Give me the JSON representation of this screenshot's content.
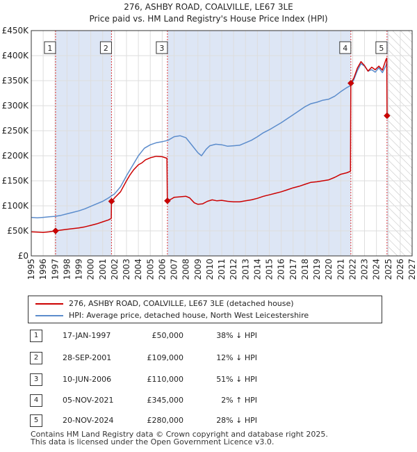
{
  "chart_data": {
    "type": "line",
    "title": "276, ASHBY ROAD, COALVILLE, LE67 3LE",
    "subtitle": "Price paid vs. HM Land Registry's House Price Index (HPI)",
    "xlim": [
      1995,
      2027
    ],
    "ylim": [
      0,
      450000
    ],
    "x_ticks": [
      1995,
      1996,
      1997,
      1998,
      1999,
      2000,
      2001,
      2002,
      2003,
      2004,
      2005,
      2006,
      2007,
      2008,
      2009,
      2010,
      2011,
      2012,
      2013,
      2014,
      2015,
      2016,
      2017,
      2018,
      2019,
      2020,
      2021,
      2022,
      2023,
      2024,
      2025,
      2026,
      2027
    ],
    "y_ticks": [
      0,
      50000,
      100000,
      150000,
      200000,
      250000,
      300000,
      350000,
      400000,
      450000
    ],
    "y_tick_labels": [
      "£0",
      "£50K",
      "£100K",
      "£150K",
      "£200K",
      "£250K",
      "£300K",
      "£350K",
      "£400K",
      "£450K"
    ],
    "forecast_start": 2025.0,
    "colors": {
      "property": "#cc0000",
      "hpi": "#5b8ccc",
      "shade": "#dde6f5",
      "grid": "#dddddd",
      "marker": "#cc0000",
      "vline": "#dd3333"
    },
    "series": [
      {
        "name": "276, ASHBY ROAD, COALVILLE, LE67 3LE (detached house)",
        "color": "#cc0000",
        "points": [
          [
            1995.0,
            48000
          ],
          [
            1995.5,
            47500
          ],
          [
            1996.0,
            47000
          ],
          [
            1996.5,
            48000
          ],
          [
            1997.04,
            50000
          ],
          [
            1997.5,
            51500
          ],
          [
            1998.0,
            53000
          ],
          [
            1998.5,
            54500
          ],
          [
            1999.0,
            56000
          ],
          [
            1999.5,
            58000
          ],
          [
            2000.0,
            61000
          ],
          [
            2000.5,
            64000
          ],
          [
            2001.0,
            68000
          ],
          [
            2001.5,
            72000
          ],
          [
            2001.72,
            75000
          ],
          [
            2001.74,
            109000
          ],
          [
            2002.0,
            116000
          ],
          [
            2002.5,
            128000
          ],
          [
            2003.0,
            150000
          ],
          [
            2003.3,
            162000
          ],
          [
            2003.6,
            172000
          ],
          [
            2004.0,
            182000
          ],
          [
            2004.3,
            186000
          ],
          [
            2004.6,
            192000
          ],
          [
            2005.0,
            196000
          ],
          [
            2005.5,
            199000
          ],
          [
            2006.0,
            198000
          ],
          [
            2006.4,
            195000
          ],
          [
            2006.43,
            120000
          ],
          [
            2006.44,
            110000
          ],
          [
            2006.8,
            114000
          ],
          [
            2007.0,
            117000
          ],
          [
            2007.5,
            118000
          ],
          [
            2008.0,
            119000
          ],
          [
            2008.3,
            116000
          ],
          [
            2008.7,
            106000
          ],
          [
            2009.0,
            103000
          ],
          [
            2009.4,
            104000
          ],
          [
            2009.8,
            109000
          ],
          [
            2010.2,
            112000
          ],
          [
            2010.6,
            110000
          ],
          [
            2011.0,
            111000
          ],
          [
            2011.5,
            109000
          ],
          [
            2012.0,
            108000
          ],
          [
            2012.5,
            108000
          ],
          [
            2013.0,
            110000
          ],
          [
            2013.5,
            112000
          ],
          [
            2014.0,
            115000
          ],
          [
            2014.5,
            119000
          ],
          [
            2015.0,
            122000
          ],
          [
            2015.5,
            125000
          ],
          [
            2016.0,
            128000
          ],
          [
            2016.5,
            132000
          ],
          [
            2017.0,
            136000
          ],
          [
            2017.5,
            139000
          ],
          [
            2018.0,
            143000
          ],
          [
            2018.5,
            147000
          ],
          [
            2019.0,
            148000
          ],
          [
            2019.5,
            150000
          ],
          [
            2020.0,
            152000
          ],
          [
            2020.5,
            157000
          ],
          [
            2021.0,
            163000
          ],
          [
            2021.5,
            166000
          ],
          [
            2021.82,
            169000
          ],
          [
            2021.85,
            345000
          ],
          [
            2022.1,
            355000
          ],
          [
            2022.4,
            375000
          ],
          [
            2022.7,
            388000
          ],
          [
            2023.0,
            380000
          ],
          [
            2023.3,
            369000
          ],
          [
            2023.6,
            377000
          ],
          [
            2023.9,
            372000
          ],
          [
            2024.2,
            379000
          ],
          [
            2024.5,
            371000
          ],
          [
            2024.8,
            392000
          ],
          [
            2024.87,
            395000
          ],
          [
            2024.89,
            280000
          ]
        ]
      },
      {
        "name": "HPI: Average price, detached house, North West Leicestershire",
        "color": "#5b8ccc",
        "points": [
          [
            1995.0,
            77000
          ],
          [
            1995.5,
            76000
          ],
          [
            1996.0,
            77000
          ],
          [
            1996.5,
            78000
          ],
          [
            1997.0,
            79000
          ],
          [
            1997.5,
            81000
          ],
          [
            1998.0,
            84000
          ],
          [
            1998.5,
            87000
          ],
          [
            1999.0,
            90000
          ],
          [
            1999.5,
            94000
          ],
          [
            2000.0,
            99000
          ],
          [
            2000.5,
            104000
          ],
          [
            2001.0,
            109000
          ],
          [
            2001.5,
            116000
          ],
          [
            2002.0,
            124000
          ],
          [
            2002.5,
            138000
          ],
          [
            2003.0,
            160000
          ],
          [
            2003.5,
            180000
          ],
          [
            2004.0,
            200000
          ],
          [
            2004.5,
            215000
          ],
          [
            2005.0,
            222000
          ],
          [
            2005.5,
            226000
          ],
          [
            2006.0,
            228000
          ],
          [
            2006.5,
            231000
          ],
          [
            2007.0,
            238000
          ],
          [
            2007.5,
            240000
          ],
          [
            2008.0,
            236000
          ],
          [
            2008.5,
            221000
          ],
          [
            2009.0,
            206000
          ],
          [
            2009.3,
            200000
          ],
          [
            2009.7,
            213000
          ],
          [
            2010.0,
            220000
          ],
          [
            2010.5,
            223000
          ],
          [
            2011.0,
            222000
          ],
          [
            2011.5,
            219000
          ],
          [
            2012.0,
            220000
          ],
          [
            2012.5,
            221000
          ],
          [
            2013.0,
            226000
          ],
          [
            2013.5,
            231000
          ],
          [
            2014.0,
            238000
          ],
          [
            2014.5,
            246000
          ],
          [
            2015.0,
            252000
          ],
          [
            2015.5,
            259000
          ],
          [
            2016.0,
            266000
          ],
          [
            2016.5,
            274000
          ],
          [
            2017.0,
            282000
          ],
          [
            2017.5,
            290000
          ],
          [
            2018.0,
            298000
          ],
          [
            2018.5,
            304000
          ],
          [
            2019.0,
            307000
          ],
          [
            2019.5,
            311000
          ],
          [
            2020.0,
            313000
          ],
          [
            2020.5,
            319000
          ],
          [
            2021.0,
            328000
          ],
          [
            2021.5,
            336000
          ],
          [
            2021.82,
            340000
          ],
          [
            2022.1,
            352000
          ],
          [
            2022.4,
            370000
          ],
          [
            2022.7,
            384000
          ],
          [
            2023.0,
            379000
          ],
          [
            2023.3,
            369000
          ],
          [
            2023.6,
            372000
          ],
          [
            2023.9,
            367000
          ],
          [
            2024.2,
            376000
          ],
          [
            2024.5,
            366000
          ],
          [
            2024.8,
            380000
          ],
          [
            2024.89,
            387000
          ]
        ]
      }
    ],
    "sales": [
      {
        "id": "1",
        "x": 1997.04,
        "y": 50000
      },
      {
        "id": "2",
        "x": 2001.74,
        "y": 109000
      },
      {
        "id": "3",
        "x": 2006.44,
        "y": 110000
      },
      {
        "id": "4",
        "x": 2021.85,
        "y": 345000
      },
      {
        "id": "5",
        "x": 2024.89,
        "y": 280000
      }
    ]
  },
  "legend": {
    "property_label": "276, ASHBY ROAD, COALVILLE, LE67 3LE (detached house)",
    "hpi_label": "HPI: Average price, detached house, North West Leicestershire"
  },
  "sales_table": [
    {
      "num": "1",
      "date": "17-JAN-1997",
      "price": "£50,000",
      "hpi": "38% ↓ HPI"
    },
    {
      "num": "2",
      "date": "28-SEP-2001",
      "price": "£109,000",
      "hpi": "12% ↓ HPI"
    },
    {
      "num": "3",
      "date": "10-JUN-2006",
      "price": "£110,000",
      "hpi": "51% ↓ HPI"
    },
    {
      "num": "4",
      "date": "05-NOV-2021",
      "price": "£345,000",
      "hpi": "2% ↑ HPI"
    },
    {
      "num": "5",
      "date": "20-NOV-2024",
      "price": "£280,000",
      "hpi": "28% ↓ HPI"
    }
  ],
  "footer": {
    "line1": "Contains HM Land Registry data © Crown copyright and database right 2025.",
    "line2": "This data is licensed under the Open Government Licence v3.0."
  }
}
